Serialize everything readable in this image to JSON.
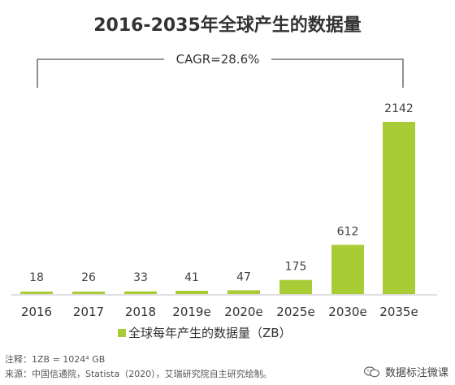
{
  "chart_data": {
    "type": "bar",
    "title": "2016-2035年全球产生的数据量",
    "categories": [
      "2016",
      "2017",
      "2018",
      "2019e",
      "2020e",
      "2025e",
      "2030e",
      "2035e"
    ],
    "values": [
      18,
      26,
      33,
      41,
      47,
      175,
      612,
      2142
    ],
    "value_labels": [
      "18",
      "26",
      "33",
      "41",
      "47",
      "175",
      "612",
      "2142"
    ],
    "series": [
      {
        "name": "全球每年产生的数据量（ZB）",
        "values": [
          18,
          26,
          33,
          41,
          47,
          175,
          612,
          2142
        ]
      }
    ],
    "cagr_label": "CAGR=28.6%",
    "bar_color": "#a8cc35",
    "ylim": [
      0,
      2142
    ],
    "legend": "bottom",
    "grid": false
  },
  "notes": {
    "note1": "注释：1ZB = 1024⁴ GB",
    "source": "来源：中国信通院，Statista（2020），艾瑞研究院自主研究绘制。"
  },
  "watermark": {
    "text": "数据标注微课",
    "icon": "wechat-icon"
  }
}
